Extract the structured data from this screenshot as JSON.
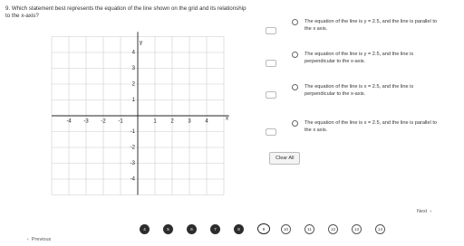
{
  "question": {
    "text": "9. Which statement best represents the equation of the line shown on the grid and its relationship to the x-axis?"
  },
  "graph": {
    "x_axis_label": "x",
    "y_axis_label": "y",
    "x_tick_labels": [
      "-4",
      "-3",
      "-2",
      "-1",
      "1",
      "2",
      "3",
      "4"
    ],
    "y_tick_labels": [
      "4",
      "3",
      "2",
      "1",
      "-1",
      "-2",
      "-3",
      "-4"
    ]
  },
  "choices": [
    {
      "text": "The equation of the line is y = 2.5, and the line is parallel to the x axis."
    },
    {
      "text": "The equation of the line is y = 2.5, and the line is perpendicular to the x-axis."
    },
    {
      "text": "The equation of the line is x = 2.5, and the line is perpendicular to the x-axis."
    },
    {
      "text": "The equation of the line is x = 2.5, and the line is parallel to the x axis."
    }
  ],
  "clear_button": "Clear All",
  "navigation": {
    "previous": "Previous",
    "next": "Next",
    "question_numbers": [
      "4",
      "5",
      "6",
      "7",
      "8",
      "9",
      "10",
      "11",
      "12",
      "13",
      "14"
    ]
  }
}
